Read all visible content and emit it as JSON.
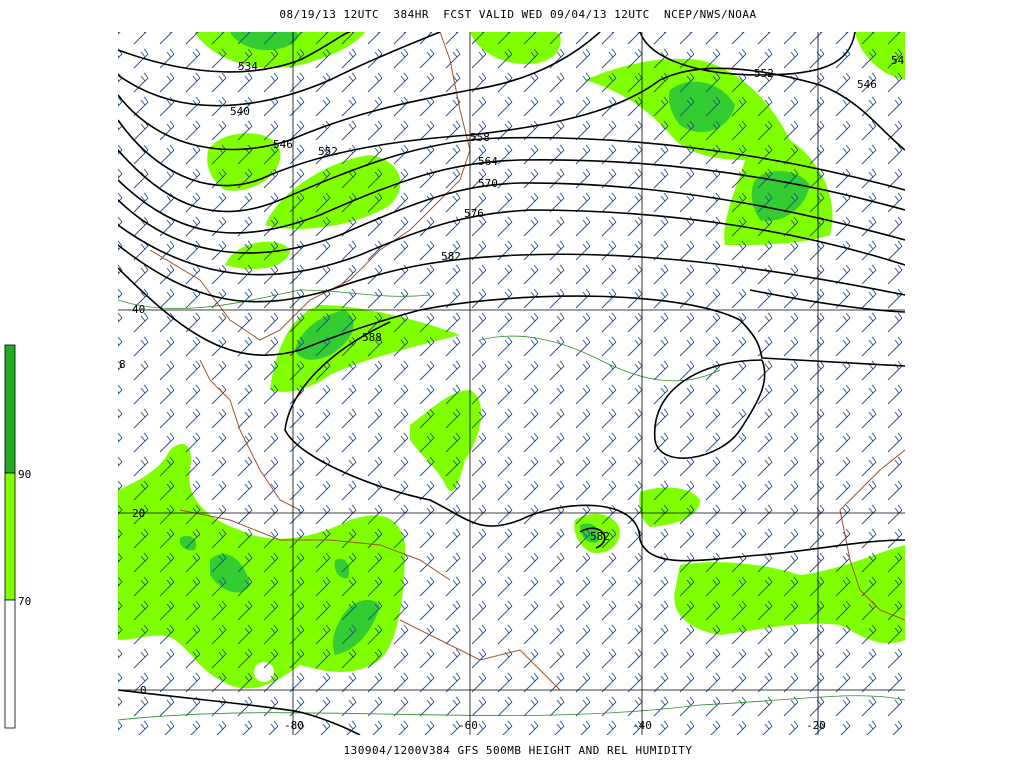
{
  "header": "08/19/13 12UTC  384HR  FCST VALID WED 09/04/13 12UTC  NCEP/NWS/NOAA",
  "footer": "130904/1200V384 GFS 500MB HEIGHT AND REL HUMIDITY",
  "colorbar": {
    "labels": [
      "90",
      "70"
    ]
  },
  "map": {
    "lat_labels": [
      "40",
      "8",
      "20",
      "0"
    ],
    "lon_labels": [
      "-80",
      "-60",
      "-40",
      "-20"
    ],
    "contour_labels": [
      "534",
      "540",
      "546",
      "552",
      "558",
      "564",
      "570",
      "576",
      "582",
      "588",
      "582",
      "552",
      "546",
      "54"
    ]
  }
}
